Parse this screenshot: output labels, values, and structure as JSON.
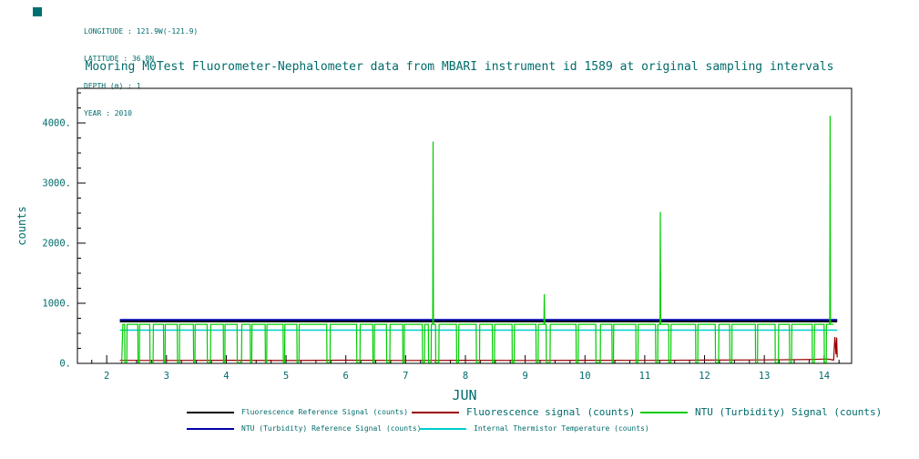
{
  "meta": {
    "line1": "LONGITUDE : 121.9W(-121.9)",
    "line2": "LATITUDE : 36.8N",
    "line3": "DEPTH (m) : 1",
    "line4": "YEAR : 2010"
  },
  "title": "Mooring M0Test Fluorometer-Nephalometer data from MBARI instrument id 1589 at original sampling intervals",
  "colors": {
    "text": "#006b6b",
    "axis": "#000000",
    "fluor_ref": "#000000",
    "fluor_signal": "#990000",
    "ntu_signal": "#00cc00",
    "ntu_ref": "#0000aa",
    "thermistor": "#00cccc"
  },
  "chart_data": {
    "type": "line",
    "title": "Mooring M0Test Fluorometer-Nephalometer data from MBARI instrument id 1589 at original sampling intervals",
    "xlabel": "JUN",
    "ylabel": "counts",
    "xlim": [
      1.51,
      14.46
    ],
    "ylim": [
      0,
      4576
    ],
    "xticks": [
      2,
      3,
      4,
      5,
      6,
      7,
      8,
      9,
      10,
      11,
      12,
      13,
      14
    ],
    "yticks": [
      0,
      1000,
      2000,
      3000,
      4000
    ],
    "x_minor_step": 0.25,
    "y_minor_step": 250,
    "grid": false,
    "legend_position": "bottom",
    "series": [
      {
        "name": "Fluorescence Reference Signal (counts)",
        "color": "#000000",
        "width": 2.4,
        "points": [
          [
            2.22,
            700
          ],
          [
            14.22,
            700
          ]
        ]
      },
      {
        "name": "NTU (Turbidity) Reference Signal (counts)",
        "color": "#0000aa",
        "width": 2,
        "points": [
          [
            2.22,
            724
          ],
          [
            14.22,
            724
          ]
        ]
      },
      {
        "name": "Internal Thermistor Temperature (counts)",
        "color": "#00cccc",
        "width": 1.4,
        "points": [
          [
            2.22,
            553
          ],
          [
            14.22,
            553
          ]
        ]
      },
      {
        "name": "Fluorescence signal (counts)",
        "color": "#990000",
        "width": 1.2,
        "points": [
          [
            2.22,
            50
          ],
          [
            3,
            48
          ],
          [
            4,
            52
          ],
          [
            5,
            47
          ],
          [
            6,
            53
          ],
          [
            7,
            49
          ],
          [
            8,
            51
          ],
          [
            9,
            48
          ],
          [
            10,
            52
          ],
          [
            11,
            50
          ],
          [
            12,
            55
          ],
          [
            13,
            58
          ],
          [
            13.8,
            65
          ],
          [
            14.05,
            72
          ],
          [
            14.12,
            62
          ],
          [
            14.16,
            55
          ],
          [
            14.18,
            440
          ],
          [
            14.2,
            150
          ],
          [
            14.21,
            430
          ],
          [
            14.22,
            100
          ]
        ]
      },
      {
        "name": "NTU (Turbidity) Signal (counts)",
        "color": "#00cc00",
        "width": 1.2,
        "pattern": {
          "start": 2.25,
          "end": 14.16,
          "baseline": 650,
          "dip_value": 12,
          "dips": [
            [
              2.3,
              2.34
            ],
            [
              2.52,
              2.55
            ],
            [
              2.72,
              2.78
            ],
            [
              2.95,
              2.98
            ],
            [
              3.18,
              3.22
            ],
            [
              3.45,
              3.48
            ],
            [
              3.68,
              3.74
            ],
            [
              3.95,
              3.98
            ],
            [
              4.18,
              4.26
            ],
            [
              4.4,
              4.43
            ],
            [
              4.65,
              4.68
            ],
            [
              4.95,
              4.98
            ],
            [
              5.18,
              5.22
            ],
            [
              5.68,
              5.74
            ],
            [
              6.18,
              6.24
            ],
            [
              6.45,
              6.48
            ],
            [
              6.68,
              6.74
            ],
            [
              6.95,
              6.98
            ],
            [
              7.28,
              7.32
            ],
            [
              7.38,
              7.43
            ],
            [
              7.5,
              7.56
            ],
            [
              7.85,
              7.89
            ],
            [
              8.18,
              8.24
            ],
            [
              8.45,
              8.49
            ],
            [
              8.78,
              8.82
            ],
            [
              9.18,
              9.22
            ],
            [
              9.35,
              9.42
            ],
            [
              9.85,
              9.89
            ],
            [
              10.18,
              10.26
            ],
            [
              10.45,
              10.48
            ],
            [
              10.85,
              10.89
            ],
            [
              11.18,
              11.22
            ],
            [
              11.4,
              11.44
            ],
            [
              11.85,
              11.89
            ],
            [
              12.18,
              12.24
            ],
            [
              12.42,
              12.46
            ],
            [
              12.85,
              12.89
            ],
            [
              13.18,
              13.24
            ],
            [
              13.42,
              13.46
            ],
            [
              13.8,
              13.84
            ],
            [
              14.0,
              14.04
            ]
          ],
          "spikes": [
            [
              7.46,
              3690
            ],
            [
              9.32,
              1150
            ],
            [
              11.26,
              2520
            ],
            [
              14.1,
              4120
            ]
          ]
        }
      }
    ]
  },
  "legend": {
    "rows": [
      {
        "items": [
          {
            "label": "Fluorescence Reference Signal (counts)",
            "color": "#000000",
            "size": "small"
          },
          {
            "label": "Fluorescence signal (counts)",
            "color": "#990000",
            "size": "large"
          },
          {
            "label": "NTU (Turbidity) Signal (counts)",
            "color": "#00cc00",
            "size": "large"
          }
        ]
      },
      {
        "items": [
          {
            "label": "NTU (Turbidity) Reference Signal (counts)",
            "color": "#0000aa",
            "size": "small"
          },
          {
            "label": "Internal Thermistor Temperature (counts)",
            "color": "#00cccc",
            "size": "small"
          }
        ]
      }
    ]
  }
}
